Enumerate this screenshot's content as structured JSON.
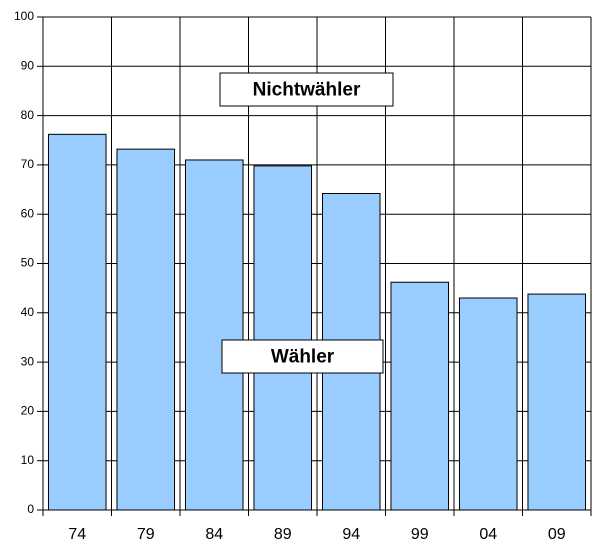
{
  "chart_data": {
    "type": "bar",
    "categories": [
      "74",
      "79",
      "84",
      "89",
      "94",
      "99",
      "04",
      "09"
    ],
    "values": [
      76.2,
      73.2,
      71,
      69.8,
      64.2,
      46.2,
      43,
      43.8
    ],
    "color": "#99ccff",
    "ylim": [
      0,
      100
    ],
    "yticks": [
      0,
      10,
      20,
      30,
      40,
      50,
      60,
      70,
      80,
      90,
      100
    ],
    "grid": true,
    "annotations": [
      {
        "text": "Nichtwähler"
      },
      {
        "text": "Wähler"
      }
    ]
  }
}
